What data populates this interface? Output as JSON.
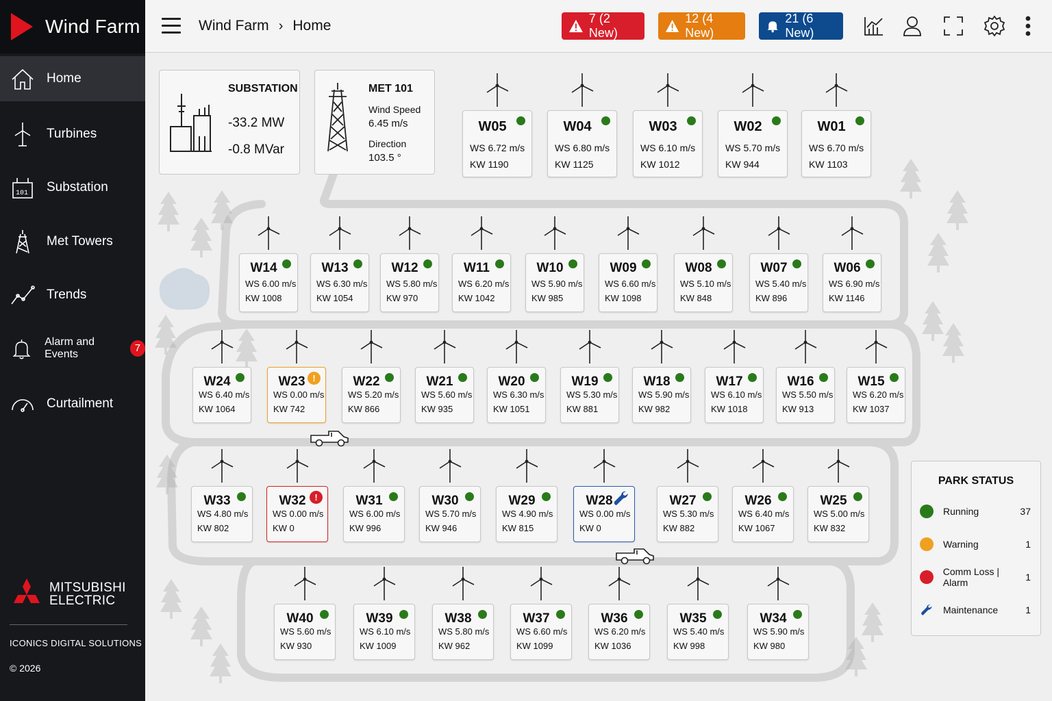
{
  "sidebar": {
    "brand_title": "Wind Farm",
    "nav": [
      {
        "label": "Home",
        "icon": "home-icon",
        "active": true
      },
      {
        "label": "Turbines",
        "icon": "turbine-icon"
      },
      {
        "label": "Substation",
        "icon": "substation-icon"
      },
      {
        "label": "Met Towers",
        "icon": "met-tower-icon"
      },
      {
        "label": "Trends",
        "icon": "trend-icon"
      },
      {
        "label": "Alarm and Events",
        "icon": "bell-icon",
        "badge": "7"
      },
      {
        "label": "Curtailment",
        "icon": "gauge-icon"
      }
    ],
    "company_line1": "MITSUBISHI",
    "company_line2": "ELECTRIC",
    "vendor": "ICONICS DIGITAL SOLUTIONS",
    "copyright": "© 2026"
  },
  "header": {
    "breadcrumb": [
      "Wind Farm",
      "Home"
    ],
    "alarms": [
      {
        "text": "7 (2 New)",
        "color": "#d81e2a",
        "icon": "warning-icon"
      },
      {
        "text": "12 (4 New)",
        "color": "#e57d10",
        "icon": "warning-icon"
      },
      {
        "text": "21 (6 New)",
        "color": "#0e4a8e",
        "icon": "bell-icon"
      }
    ],
    "tools": [
      "chart-icon",
      "user-icon",
      "fullscreen-icon",
      "gear-icon",
      "more-vertical-icon"
    ]
  },
  "substation": {
    "title": "SUBSTATION",
    "mw": "-33.2 MW",
    "mvar": "-0.8 MVar"
  },
  "met": {
    "title": "MET 101",
    "ws_label": "Wind Speed",
    "ws_value": "6.45 m/s",
    "dir_label": "Direction",
    "dir_value": "103.5 °"
  },
  "status_colors": {
    "running": "#2a7a1a",
    "warning": "#f0a020",
    "alarm": "#d81e2a",
    "maintenance": "#1e4fa0"
  },
  "turbines": [
    {
      "id": "W05",
      "ws": "WS 6.72 m/s",
      "kw": "KW 1190",
      "status": "running"
    },
    {
      "id": "W04",
      "ws": "WS 6.80 m/s",
      "kw": "KW 1125",
      "status": "running"
    },
    {
      "id": "W03",
      "ws": "WS 6.10 m/s",
      "kw": "KW 1012",
      "status": "running"
    },
    {
      "id": "W02",
      "ws": "WS 5.70 m/s",
      "kw": "KW 944",
      "status": "running"
    },
    {
      "id": "W01",
      "ws": "WS 6.70 m/s",
      "kw": "KW 1103",
      "status": "running"
    },
    {
      "id": "W14",
      "ws": "WS 6.00 m/s",
      "kw": "KW 1008",
      "status": "running"
    },
    {
      "id": "W13",
      "ws": "WS 6.30 m/s",
      "kw": "KW 1054",
      "status": "running"
    },
    {
      "id": "W12",
      "ws": "WS 5.80 m/s",
      "kw": "KW 970",
      "status": "running"
    },
    {
      "id": "W11",
      "ws": "WS 6.20 m/s",
      "kw": "KW 1042",
      "status": "running"
    },
    {
      "id": "W10",
      "ws": "WS 5.90 m/s",
      "kw": "KW 985",
      "status": "running"
    },
    {
      "id": "W09",
      "ws": "WS 6.60 m/s",
      "kw": "KW 1098",
      "status": "running"
    },
    {
      "id": "W08",
      "ws": "WS 5.10 m/s",
      "kw": "KW 848",
      "status": "running"
    },
    {
      "id": "W07",
      "ws": "WS 5.40 m/s",
      "kw": "KW 896",
      "status": "running"
    },
    {
      "id": "W06",
      "ws": "WS 6.90 m/s",
      "kw": "KW 1146",
      "status": "running"
    },
    {
      "id": "W24",
      "ws": "WS 6.40 m/s",
      "kw": "KW 1064",
      "status": "running"
    },
    {
      "id": "W23",
      "ws": "WS 0.00 m/s",
      "kw": "KW 742",
      "status": "warning"
    },
    {
      "id": "W22",
      "ws": "WS 5.20 m/s",
      "kw": "KW 866",
      "status": "running"
    },
    {
      "id": "W21",
      "ws": "WS 5.60 m/s",
      "kw": "KW 935",
      "status": "running"
    },
    {
      "id": "W20",
      "ws": "WS 6.30 m/s",
      "kw": "KW 1051",
      "status": "running"
    },
    {
      "id": "W19",
      "ws": "WS 5.30 m/s",
      "kw": "KW 881",
      "status": "running"
    },
    {
      "id": "W18",
      "ws": "WS 5.90 m/s",
      "kw": "KW 982",
      "status": "running"
    },
    {
      "id": "W17",
      "ws": "WS 6.10 m/s",
      "kw": "KW 1018",
      "status": "running"
    },
    {
      "id": "W16",
      "ws": "WS 5.50 m/s",
      "kw": "KW 913",
      "status": "running"
    },
    {
      "id": "W15",
      "ws": "WS 6.20 m/s",
      "kw": "KW 1037",
      "status": "running"
    },
    {
      "id": "W33",
      "ws": "WS 4.80 m/s",
      "kw": "KW 802",
      "status": "running"
    },
    {
      "id": "W32",
      "ws": "WS 0.00 m/s",
      "kw": "KW 0",
      "status": "alarm"
    },
    {
      "id": "W31",
      "ws": "WS 6.00 m/s",
      "kw": "KW 996",
      "status": "running"
    },
    {
      "id": "W30",
      "ws": "WS 5.70 m/s",
      "kw": "KW 946",
      "status": "running"
    },
    {
      "id": "W29",
      "ws": "WS 4.90 m/s",
      "kw": "KW 815",
      "status": "running"
    },
    {
      "id": "W28",
      "ws": "WS 0.00 m/s",
      "kw": "KW 0",
      "status": "maintenance"
    },
    {
      "id": "W27",
      "ws": "WS 5.30 m/s",
      "kw": "KW 882",
      "status": "running"
    },
    {
      "id": "W26",
      "ws": "WS 6.40 m/s",
      "kw": "KW 1067",
      "status": "running"
    },
    {
      "id": "W25",
      "ws": "WS 5.00 m/s",
      "kw": "KW 832",
      "status": "running"
    },
    {
      "id": "W40",
      "ws": "WS 5.60 m/s",
      "kw": "KW 930",
      "status": "running"
    },
    {
      "id": "W39",
      "ws": "WS 6.10 m/s",
      "kw": "KW 1009",
      "status": "running"
    },
    {
      "id": "W38",
      "ws": "WS 5.80 m/s",
      "kw": "KW 962",
      "status": "running"
    },
    {
      "id": "W37",
      "ws": "WS 6.60 m/s",
      "kw": "KW 1099",
      "status": "running"
    },
    {
      "id": "W36",
      "ws": "WS 6.20 m/s",
      "kw": "KW 1036",
      "status": "running"
    },
    {
      "id": "W35",
      "ws": "WS 5.40 m/s",
      "kw": "KW 998",
      "status": "running"
    },
    {
      "id": "W34",
      "ws": "WS 5.90 m/s",
      "kw": "KW 980",
      "status": "running"
    }
  ],
  "park_status": {
    "title": "PARK STATUS",
    "rows": [
      {
        "label": "Running",
        "count": "37",
        "status": "running"
      },
      {
        "label": "Warning",
        "count": "1",
        "status": "warning"
      },
      {
        "label": "Comm Loss | Alarm",
        "count": "1",
        "status": "alarm"
      },
      {
        "label": "Maintenance",
        "count": "1",
        "status": "maintenance"
      }
    ]
  }
}
